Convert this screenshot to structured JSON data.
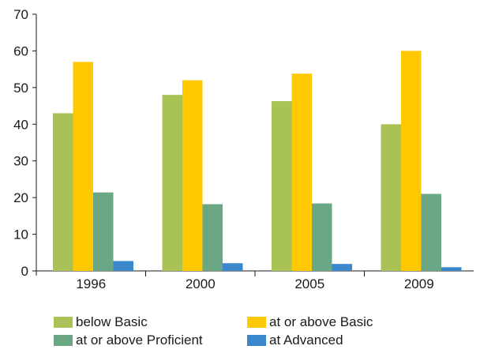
{
  "chart_data": {
    "type": "bar",
    "categories": [
      "1996",
      "2000",
      "2005",
      "2009"
    ],
    "series": [
      {
        "name": "below Basic",
        "values": [
          43,
          48,
          46.3,
          40
        ],
        "color": "#a9c256"
      },
      {
        "name": "at or above Basic",
        "values": [
          57,
          52,
          53.8,
          60
        ],
        "color": "#ffc800"
      },
      {
        "name": "at or above Proficient",
        "values": [
          21.4,
          18.2,
          18.4,
          21
        ],
        "color": "#6aa784"
      },
      {
        "name": "at Advanced",
        "values": [
          2.7,
          2.1,
          1.9,
          1.0
        ],
        "color": "#3a87cb"
      }
    ],
    "y_ticks": [
      "0",
      "10",
      "20",
      "30",
      "40",
      "50",
      "60",
      "70"
    ],
    "ylim": [
      0,
      70
    ],
    "title": "",
    "xlabel": "",
    "ylabel": "",
    "grid": false,
    "legend_position": "bottom"
  }
}
